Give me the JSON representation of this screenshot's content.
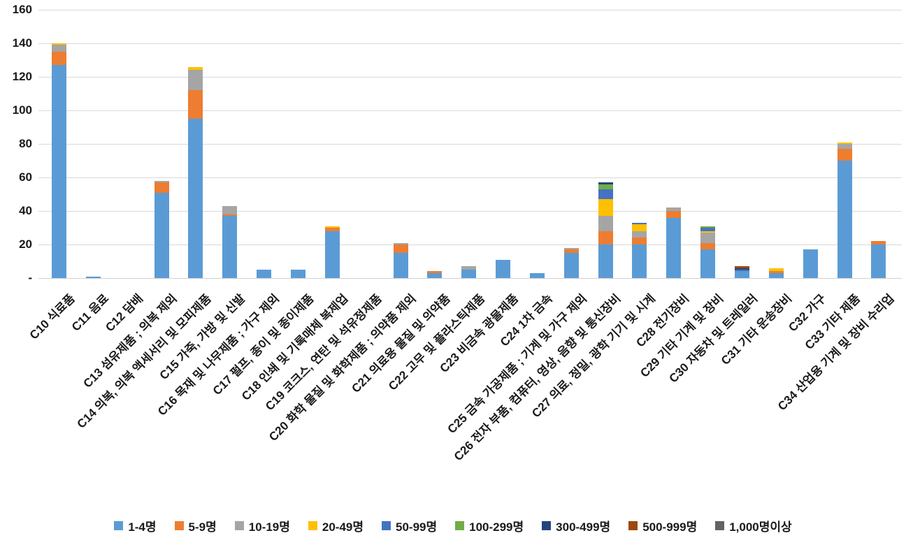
{
  "chart_data": {
    "type": "bar",
    "stacked": true,
    "title": "",
    "xlabel": "",
    "ylabel": "",
    "ylim": [
      0,
      160
    ],
    "ytick_step": 20,
    "zero_tick_label": "-",
    "ytick_labels": [
      "-",
      "20",
      "40",
      "60",
      "80",
      "100",
      "120",
      "140",
      "160"
    ],
    "grid": true,
    "legend_position": "bottom",
    "categories": [
      "C10 식료품",
      "C11 음료",
      "C12 담배",
      "C13 섬유제품 ; 의복 제외",
      "C14 의복, 의복 액세서리 및 모피제품",
      "C15 가죽, 가방 및 신발",
      "C16 목재 및 나무제품 ; 가구 제외",
      "C17 펄프, 종이 및 종이제품",
      "C18 인쇄 및 기록매체 복제업",
      "C19 코크스, 연탄 및 석유정제품",
      "C20 화학 물질 및 화학제품 ; 의약품 제외",
      "C21 의료용 물질 및 의약품",
      "C22 고무 및 플라스틱제품",
      "C23 비금속 광물제품",
      "C24 1차 금속",
      "C25 금속 가공제품 ; 기계 및 가구 제외",
      "C26 전자 부품, 컴퓨터, 영상, 음향 및 통신장비",
      "C27 의료, 정밀, 광학 기기 및 시계",
      "C28 전기장비",
      "C29 기타 기계 및 장비",
      "C30 자동차 및 트레일러",
      "C31 기타 운송장비",
      "C32 가구",
      "C33 기타 제품",
      "C34 산업용 기계 및 장비 수리업"
    ],
    "series": [
      {
        "name": "1-4명",
        "color": "#5B9BD5",
        "values": [
          127,
          1,
          0,
          51,
          95,
          37,
          5,
          5,
          28,
          0,
          15,
          3,
          5,
          11,
          3,
          15,
          20,
          20,
          36,
          17,
          4,
          3,
          17,
          70,
          20
        ]
      },
      {
        "name": "5-9명",
        "color": "#ED7D31",
        "values": [
          8,
          0,
          0,
          6,
          17,
          1,
          0,
          0,
          2,
          0,
          5,
          1,
          0,
          0,
          0,
          2,
          8,
          4,
          4,
          4,
          0,
          1,
          0,
          7,
          2
        ]
      },
      {
        "name": "10-19명",
        "color": "#A5A5A5",
        "values": [
          4,
          0,
          0,
          1,
          12,
          5,
          0,
          0,
          0,
          0,
          1,
          0,
          2,
          0,
          0,
          1,
          9,
          4,
          2,
          6,
          0,
          0,
          0,
          3,
          0
        ]
      },
      {
        "name": "20-49명",
        "color": "#FFC000",
        "values": [
          1,
          0,
          0,
          0,
          2,
          0,
          0,
          0,
          1,
          0,
          0,
          0,
          0,
          0,
          0,
          0,
          10,
          4,
          0,
          1,
          0,
          2,
          0,
          1,
          0
        ]
      },
      {
        "name": "50-99명",
        "color": "#4472C4",
        "values": [
          0,
          0,
          0,
          0,
          0,
          0,
          0,
          0,
          0,
          0,
          0,
          0,
          0,
          0,
          0,
          0,
          6,
          1,
          0,
          2,
          1,
          0,
          0,
          0,
          0
        ]
      },
      {
        "name": "100-299명",
        "color": "#70AD47",
        "values": [
          0,
          0,
          0,
          0,
          0,
          0,
          0,
          0,
          0,
          0,
          0,
          0,
          0,
          0,
          0,
          0,
          3,
          0,
          0,
          1,
          0,
          0,
          0,
          0,
          0
        ]
      },
      {
        "name": "300-499명",
        "color": "#264478",
        "values": [
          0,
          0,
          0,
          0,
          0,
          0,
          0,
          0,
          0,
          0,
          0,
          0,
          0,
          0,
          0,
          0,
          1,
          0,
          0,
          0,
          1,
          0,
          0,
          0,
          0
        ]
      },
      {
        "name": "500-999명",
        "color": "#9E480E",
        "values": [
          0,
          0,
          0,
          0,
          0,
          0,
          0,
          0,
          0,
          0,
          0,
          0,
          0,
          0,
          0,
          0,
          0,
          0,
          0,
          0,
          1,
          0,
          0,
          0,
          0
        ]
      },
      {
        "name": "1,000명이상",
        "color": "#636363",
        "values": [
          0,
          0,
          0,
          0,
          0,
          0,
          0,
          0,
          0,
          0,
          0,
          0,
          0,
          0,
          0,
          0,
          0,
          0,
          0,
          0,
          0,
          0,
          0,
          0,
          0
        ]
      }
    ]
  }
}
